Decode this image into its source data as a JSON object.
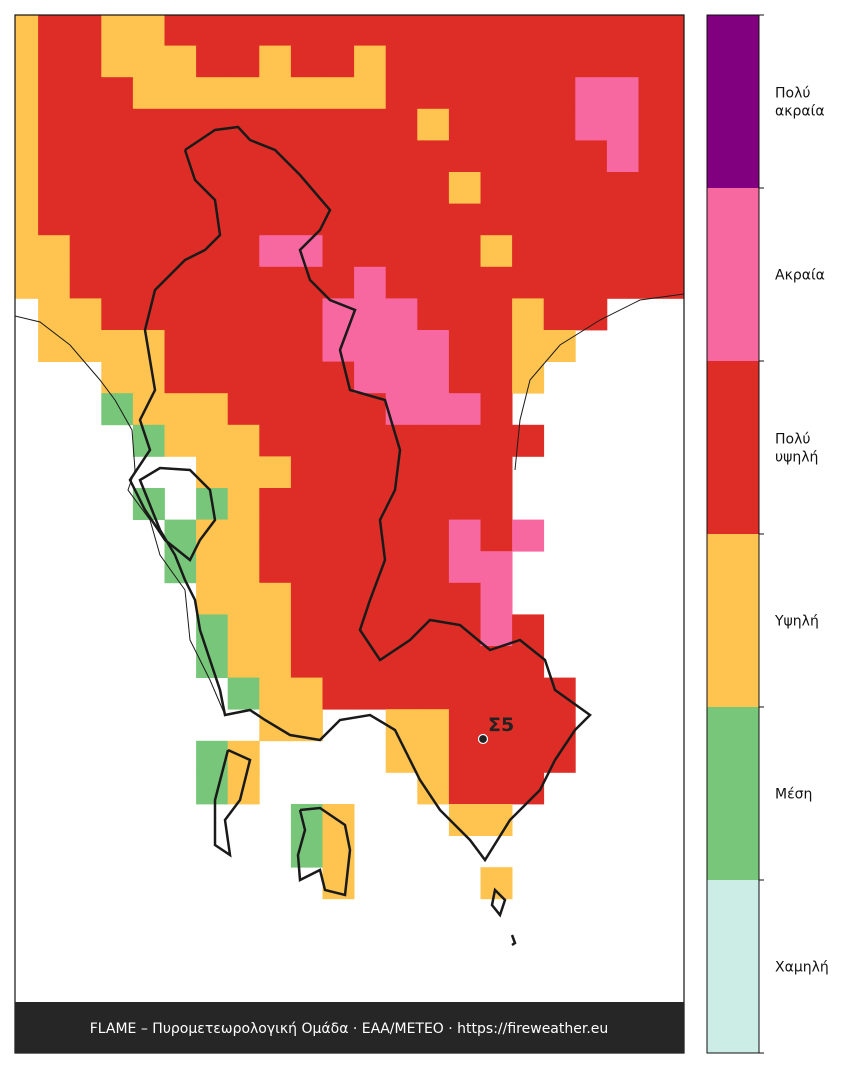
{
  "legend": {
    "labels": [
      [
        "Πολύ",
        "ακραία"
      ],
      [
        "Ακραία"
      ],
      [
        "Πολύ",
        "υψηλή"
      ],
      [
        "Υψηλή"
      ],
      [
        "Μέση"
      ],
      [
        "Χαμηλή"
      ]
    ],
    "colors": [
      "#800080",
      "#f768a1",
      "#de2d26",
      "#fec44f",
      "#78c679",
      "#ccece6"
    ]
  },
  "station": {
    "label": "Σ5"
  },
  "footer": "FLAME – Πυρομετεωρολογική Ομάδα · ΕΑΑ/ΜΕΤΕΟ · https://fireweather.eu"
}
